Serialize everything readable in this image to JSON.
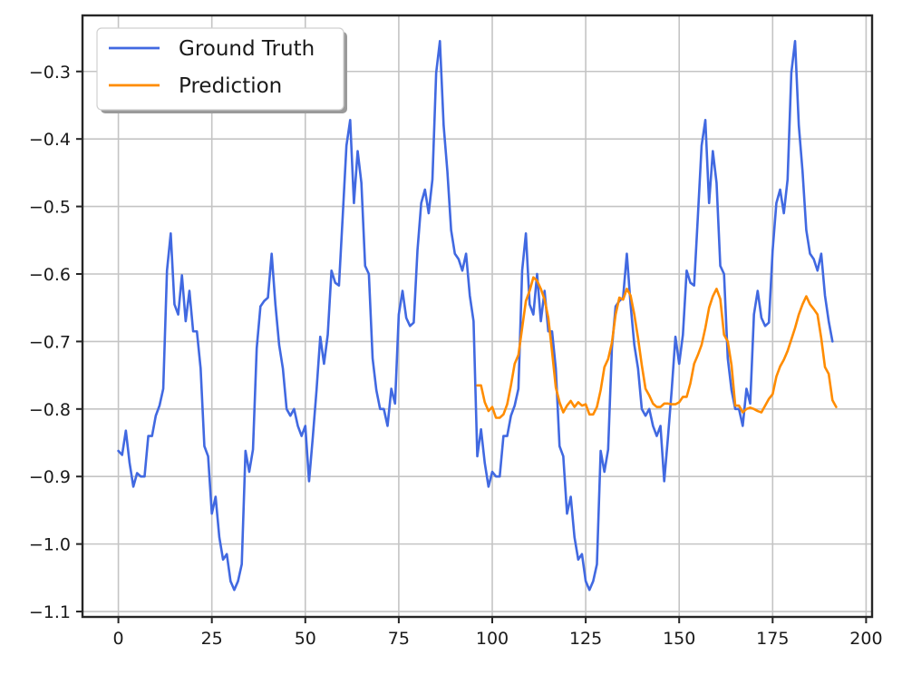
{
  "chart_data": {
    "type": "line",
    "title": "",
    "xlabel": "",
    "ylabel": "",
    "xlim": [
      -9.6,
      201.6
    ],
    "ylim": [
      -1.108,
      -0.217
    ],
    "xticks": [
      0,
      25,
      50,
      75,
      100,
      125,
      150,
      175,
      200
    ],
    "xtick_labels": [
      "0",
      "25",
      "50",
      "75",
      "100",
      "125",
      "150",
      "175",
      "200"
    ],
    "yticks": [
      -0.3,
      -0.4,
      -0.5,
      -0.6,
      -0.7,
      -0.8,
      -0.9,
      -1.0,
      -1.1
    ],
    "ytick_labels": [
      "−0.3",
      "−0.4",
      "−0.5",
      "−0.6",
      "−0.7",
      "−0.8",
      "−0.9",
      "−1.0",
      "−1.1"
    ],
    "grid": true,
    "legend_position": "top-left",
    "series": [
      {
        "name": "Ground Truth",
        "color": "#4169e1",
        "x_start": 0,
        "values": [
          -0.862,
          -0.868,
          -0.832,
          -0.88,
          -0.915,
          -0.895,
          -0.9,
          -0.9,
          -0.84,
          -0.84,
          -0.81,
          -0.795,
          -0.77,
          -0.595,
          -0.54,
          -0.645,
          -0.66,
          -0.602,
          -0.67,
          -0.625,
          -0.685,
          -0.685,
          -0.74,
          -0.855,
          -0.87,
          -0.955,
          -0.93,
          -0.99,
          -1.023,
          -1.015,
          -1.055,
          -1.068,
          -1.055,
          -1.03,
          -0.862,
          -0.893,
          -0.86,
          -0.71,
          -0.648,
          -0.64,
          -0.635,
          -0.57,
          -0.645,
          -0.705,
          -0.74,
          -0.8,
          -0.81,
          -0.8,
          -0.825,
          -0.84,
          -0.825,
          -0.907,
          -0.842,
          -0.772,
          -0.693,
          -0.733,
          -0.69,
          -0.595,
          -0.613,
          -0.617,
          -0.515,
          -0.41,
          -0.372,
          -0.495,
          -0.418,
          -0.465,
          -0.588,
          -0.6,
          -0.725,
          -0.772,
          -0.8,
          -0.8,
          -0.825,
          -0.77,
          -0.792,
          -0.66,
          -0.625,
          -0.665,
          -0.677,
          -0.672,
          -0.565,
          -0.495,
          -0.475,
          -0.51,
          -0.46,
          -0.302,
          -0.255,
          -0.38,
          -0.448,
          -0.535,
          -0.57,
          -0.578,
          -0.595,
          -0.57,
          -0.632,
          -0.67,
          -0.87,
          -0.83,
          -0.88,
          -0.915,
          -0.893,
          -0.9,
          -0.9,
          -0.84,
          -0.84,
          -0.81,
          -0.795,
          -0.77,
          -0.595,
          -0.54,
          -0.645,
          -0.66,
          -0.6,
          -0.67,
          -0.625,
          -0.685,
          -0.685,
          -0.74,
          -0.855,
          -0.87,
          -0.955,
          -0.93,
          -0.99,
          -1.023,
          -1.015,
          -1.055,
          -1.068,
          -1.055,
          -1.03,
          -0.862,
          -0.893,
          -0.86,
          -0.71,
          -0.648,
          -0.64,
          -0.635,
          -0.57,
          -0.645,
          -0.705,
          -0.74,
          -0.8,
          -0.81,
          -0.8,
          -0.825,
          -0.84,
          -0.825,
          -0.907,
          -0.842,
          -0.772,
          -0.693,
          -0.733,
          -0.69,
          -0.595,
          -0.613,
          -0.617,
          -0.515,
          -0.41,
          -0.372,
          -0.495,
          -0.418,
          -0.465,
          -0.588,
          -0.6,
          -0.725,
          -0.772,
          -0.8,
          -0.8,
          -0.825,
          -0.77,
          -0.792,
          -0.66,
          -0.625,
          -0.665,
          -0.677,
          -0.672,
          -0.565,
          -0.495,
          -0.475,
          -0.51,
          -0.46,
          -0.302,
          -0.255,
          -0.38,
          -0.448,
          -0.535,
          -0.57,
          -0.578,
          -0.595,
          -0.57,
          -0.632,
          -0.67,
          -0.7
        ]
      },
      {
        "name": "Prediction",
        "color": "#ff8c00",
        "x_start": 96,
        "values": [
          -0.765,
          -0.765,
          -0.79,
          -0.803,
          -0.797,
          -0.813,
          -0.813,
          -0.808,
          -0.793,
          -0.765,
          -0.733,
          -0.72,
          -0.68,
          -0.64,
          -0.625,
          -0.605,
          -0.61,
          -0.622,
          -0.638,
          -0.665,
          -0.715,
          -0.768,
          -0.79,
          -0.805,
          -0.795,
          -0.788,
          -0.797,
          -0.79,
          -0.795,
          -0.793,
          -0.808,
          -0.808,
          -0.797,
          -0.772,
          -0.738,
          -0.726,
          -0.702,
          -0.66,
          -0.635,
          -0.638,
          -0.622,
          -0.632,
          -0.66,
          -0.695,
          -0.735,
          -0.77,
          -0.78,
          -0.792,
          -0.797,
          -0.797,
          -0.792,
          -0.792,
          -0.793,
          -0.793,
          -0.79,
          -0.782,
          -0.782,
          -0.762,
          -0.733,
          -0.72,
          -0.705,
          -0.68,
          -0.65,
          -0.633,
          -0.622,
          -0.637,
          -0.69,
          -0.7,
          -0.735,
          -0.795,
          -0.795,
          -0.805,
          -0.8,
          -0.798,
          -0.8,
          -0.803,
          -0.805,
          -0.795,
          -0.785,
          -0.778,
          -0.752,
          -0.737,
          -0.727,
          -0.714,
          -0.697,
          -0.68,
          -0.66,
          -0.645,
          -0.633,
          -0.645,
          -0.652,
          -0.66,
          -0.695,
          -0.738,
          -0.748,
          -0.787,
          -0.797
        ]
      }
    ]
  }
}
